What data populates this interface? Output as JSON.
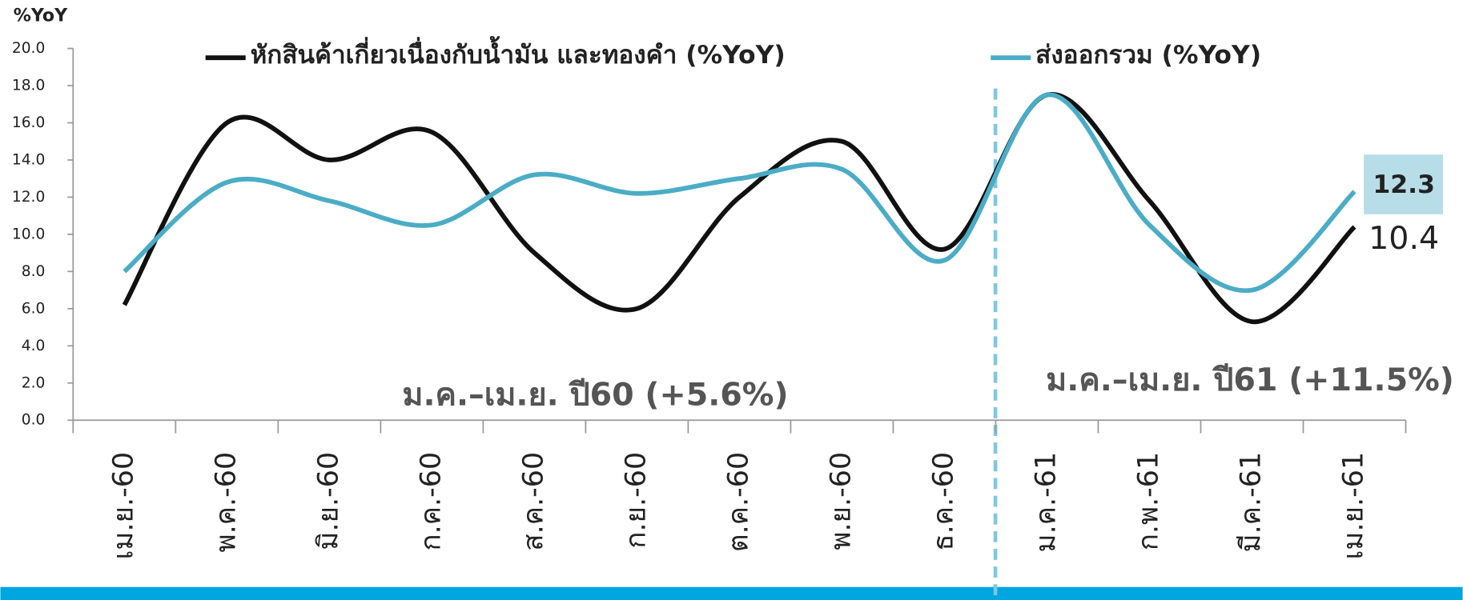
{
  "chart_data": {
    "type": "line",
    "y_label": "%YoY",
    "categories": [
      "เม.ย.-60",
      "พ.ค.-60",
      "มิ.ย.-60",
      "ก.ค.-60",
      "ส.ค.-60",
      "ก.ย.-60",
      "ต.ค.-60",
      "พ.ย.-60",
      "ธ.ค.-60",
      "ม.ค.-61",
      "ก.พ.-61",
      "มี.ค.-61",
      "เม.ย.-61"
    ],
    "series": [
      {
        "name": "หักสินค้าเกี่ยวเนื่องกับน้ำมัน และทองคำ (%YoY)",
        "color": "#111111",
        "values": [
          6.2,
          16.0,
          14.0,
          15.5,
          9.0,
          6.0,
          12.0,
          15.0,
          9.2,
          17.5,
          11.8,
          5.3,
          10.4
        ]
      },
      {
        "name": "ส่งออกรวม (%YoY)",
        "color": "#4bacc6",
        "values": [
          8.0,
          12.8,
          11.8,
          10.5,
          13.2,
          12.2,
          13.0,
          13.5,
          8.6,
          17.5,
          10.5,
          7.0,
          12.3
        ]
      }
    ],
    "ylim": [
      0,
      20
    ],
    "yticks": [
      {
        "value": 0,
        "label": "0.0"
      },
      {
        "value": 2,
        "label": "2.0"
      },
      {
        "value": 4,
        "label": "4.0"
      },
      {
        "value": 6,
        "label": "6.0"
      },
      {
        "value": 8,
        "label": "8.0"
      },
      {
        "value": 10,
        "label": "10.0"
      },
      {
        "value": 12,
        "label": "12.0"
      },
      {
        "value": 14,
        "label": "14.0"
      },
      {
        "value": 16,
        "label": "16.0"
      },
      {
        "value": 18,
        "label": "18.0"
      },
      {
        "value": 20,
        "label": "20.0"
      }
    ],
    "annotations": [
      "ม.ค.–เม.ย. ปี60 (+5.6%)",
      "ม.ค.–เม.ย. ปี61 (+11.5%)"
    ],
    "legend": "top",
    "grid": false
  }
}
